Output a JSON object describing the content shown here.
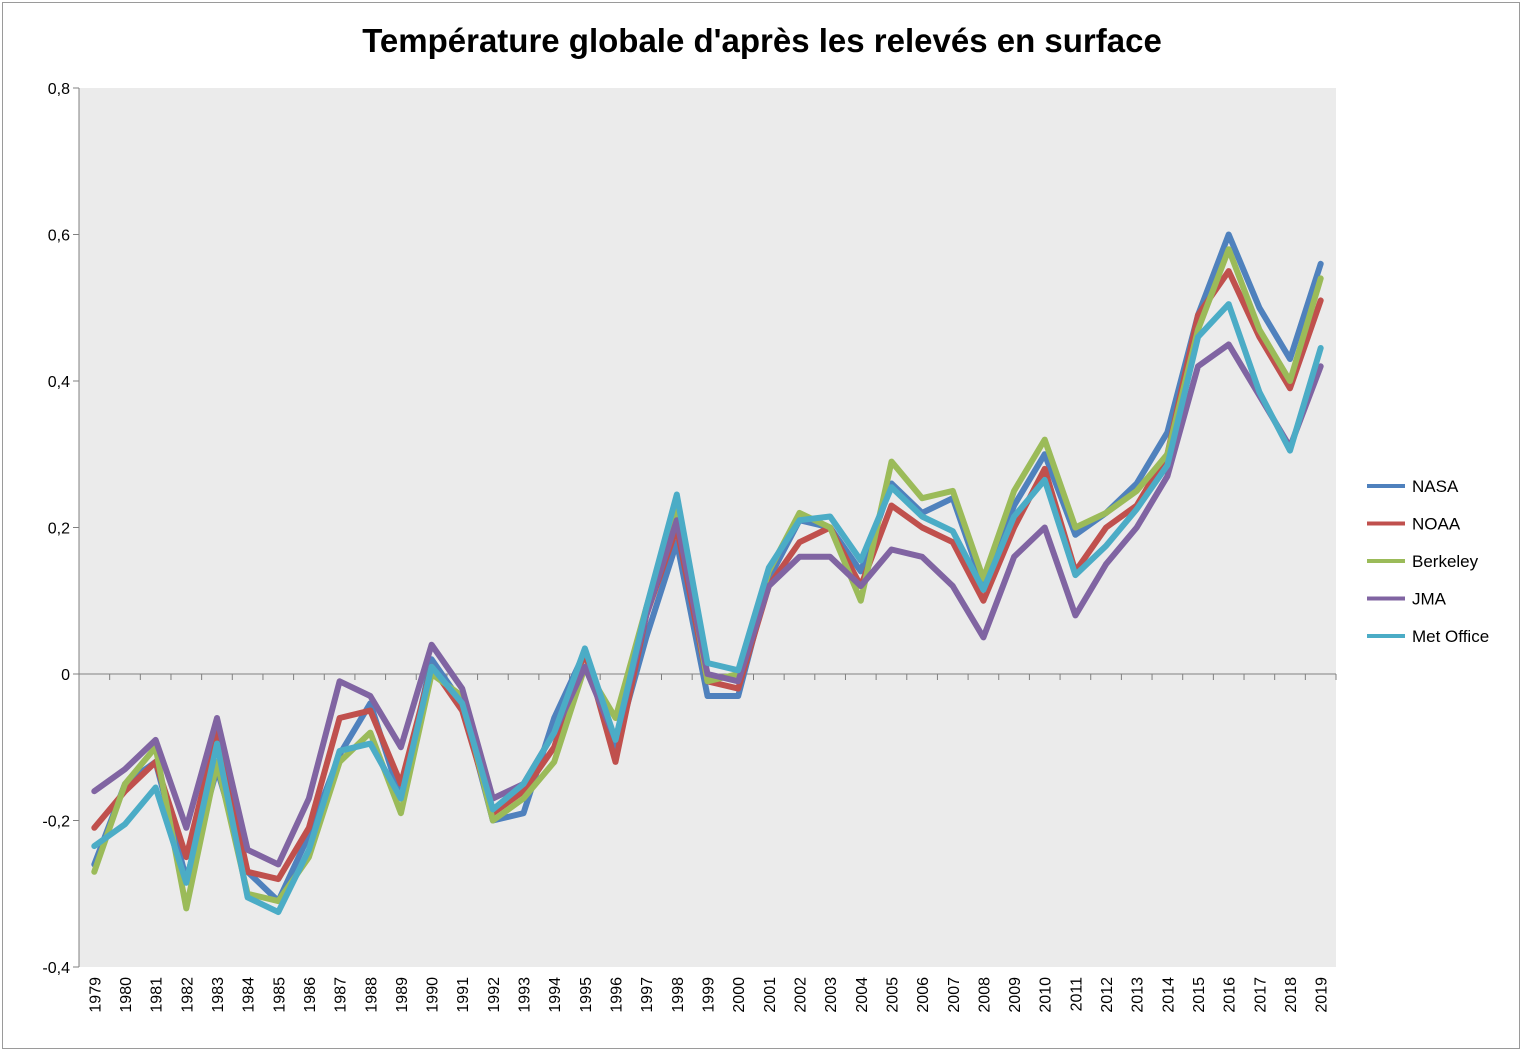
{
  "chart_data": {
    "type": "line",
    "title": "Température globale d'après les relevés en surface",
    "xlabel": "",
    "ylabel": "",
    "ylim": [
      -0.4,
      0.8
    ],
    "yticks": [
      -0.4,
      -0.2,
      0,
      0.2,
      0.4,
      0.6,
      0.8
    ],
    "ytick_labels": [
      "-0,4",
      "-0,2",
      "0",
      "0,2",
      "0,4",
      "0,6",
      "0,8"
    ],
    "grid": false,
    "legend_position": "right",
    "categories": [
      "1979",
      "1980",
      "1981",
      "1982",
      "1983",
      "1984",
      "1985",
      "1986",
      "1987",
      "1988",
      "1989",
      "1990",
      "1991",
      "1992",
      "1993",
      "1994",
      "1995",
      "1996",
      "1997",
      "1998",
      "1999",
      "2000",
      "2001",
      "2002",
      "2003",
      "2004",
      "2005",
      "2006",
      "2007",
      "2008",
      "2009",
      "2010",
      "2011",
      "2012",
      "2013",
      "2014",
      "2015",
      "2016",
      "2017",
      "2018",
      "2019"
    ],
    "series": [
      {
        "name": "NASA",
        "color": "#4f81bd",
        "values": [
          -0.26,
          -0.15,
          -0.12,
          -0.28,
          -0.13,
          -0.27,
          -0.31,
          -0.22,
          -0.11,
          -0.04,
          -0.17,
          0.02,
          -0.04,
          -0.2,
          -0.19,
          -0.06,
          0.03,
          -0.1,
          0.05,
          0.18,
          -0.03,
          -0.03,
          0.13,
          0.21,
          0.2,
          0.14,
          0.26,
          0.22,
          0.24,
          0.12,
          0.23,
          0.3,
          0.19,
          0.22,
          0.26,
          0.33,
          0.49,
          0.6,
          0.5,
          0.43,
          0.56
        ]
      },
      {
        "name": "NOAA",
        "color": "#c0504d",
        "values": [
          -0.21,
          -0.16,
          -0.12,
          -0.25,
          -0.08,
          -0.27,
          -0.28,
          -0.21,
          -0.06,
          -0.05,
          -0.15,
          0.01,
          -0.05,
          -0.19,
          -0.16,
          -0.1,
          0.03,
          -0.12,
          0.08,
          0.2,
          -0.01,
          -0.02,
          0.12,
          0.18,
          0.2,
          0.12,
          0.23,
          0.2,
          0.18,
          0.1,
          0.2,
          0.28,
          0.14,
          0.2,
          0.23,
          0.3,
          0.49,
          0.55,
          0.46,
          0.39,
          0.51
        ]
      },
      {
        "name": "Berkeley",
        "color": "#9bbb59",
        "values": [
          -0.27,
          -0.15,
          -0.1,
          -0.32,
          -0.12,
          -0.3,
          -0.31,
          -0.25,
          -0.12,
          -0.08,
          -0.19,
          0.0,
          -0.03,
          -0.2,
          -0.17,
          -0.12,
          0.01,
          -0.06,
          0.09,
          0.23,
          -0.01,
          0.0,
          0.14,
          0.22,
          0.2,
          0.1,
          0.29,
          0.24,
          0.25,
          0.13,
          0.25,
          0.32,
          0.2,
          0.22,
          0.25,
          0.3,
          0.47,
          0.58,
          0.47,
          0.4,
          0.54
        ]
      },
      {
        "name": "JMA",
        "color": "#8064a2",
        "values": [
          -0.16,
          -0.13,
          -0.09,
          -0.21,
          -0.06,
          -0.24,
          -0.26,
          -0.17,
          -0.01,
          -0.03,
          -0.1,
          0.04,
          -0.02,
          -0.17,
          -0.15,
          -0.08,
          0.01,
          -0.09,
          0.08,
          0.21,
          0.0,
          -0.01,
          0.12,
          0.16,
          0.16,
          0.12,
          0.17,
          0.16,
          0.12,
          0.05,
          0.16,
          0.2,
          0.08,
          0.15,
          0.2,
          0.27,
          0.42,
          0.45,
          0.38,
          0.31,
          0.42
        ]
      },
      {
        "name": "Met Office",
        "color": "#4bacc6",
        "values": [
          -0.235,
          -0.205,
          -0.155,
          -0.285,
          -0.095,
          -0.305,
          -0.325,
          -0.24,
          -0.105,
          -0.095,
          -0.17,
          0.01,
          -0.04,
          -0.185,
          -0.15,
          -0.08,
          0.035,
          -0.09,
          0.09,
          0.245,
          0.015,
          0.005,
          0.145,
          0.21,
          0.215,
          0.155,
          0.255,
          0.215,
          0.195,
          0.115,
          0.215,
          0.265,
          0.135,
          0.175,
          0.225,
          0.285,
          0.46,
          0.505,
          0.385,
          0.305,
          0.445
        ]
      }
    ]
  }
}
